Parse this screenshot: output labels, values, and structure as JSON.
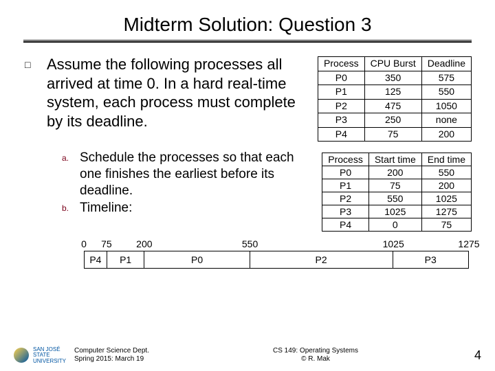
{
  "title": "Midterm Solution: Question 3",
  "main_bullet_symbol": "□",
  "main_text_part1": "Assume the following processes all arrived at time 0. In a hard real-time system, each",
  "main_text_full": "Assume the following processes all arrived at time 0. In a hard real-time system, each process must complete by its deadline.",
  "table1": {
    "headers": [
      "Process",
      "CPU Burst",
      "Deadline"
    ],
    "rows": [
      [
        "P0",
        "350",
        "575"
      ],
      [
        "P1",
        "125",
        "550"
      ],
      [
        "P2",
        "475",
        "1050"
      ],
      [
        "P3",
        "250",
        "none"
      ],
      [
        "P4",
        "75",
        "200"
      ]
    ],
    "border_color": "#000000",
    "font_size": 14
  },
  "sub_a": {
    "letter": "a.",
    "text": "Schedule the processes so that each one finishes the earliest before its deadline."
  },
  "sub_b": {
    "letter": "b.",
    "text": "Timeline:"
  },
  "letter_color": "#7a0019",
  "table2": {
    "headers": [
      "Process",
      "Start time",
      "End time"
    ],
    "rows": [
      [
        "P0",
        "200",
        "550"
      ],
      [
        "P1",
        "75",
        "200"
      ],
      [
        "P2",
        "550",
        "1025"
      ],
      [
        "P3",
        "1025",
        "1275"
      ],
      [
        "P4",
        "0",
        "75"
      ]
    ],
    "border_color": "#000000",
    "font_size": 14
  },
  "timeline": {
    "ticks": [
      {
        "label": "0",
        "pos": 0.0
      },
      {
        "label": "75",
        "pos": 0.0588
      },
      {
        "label": "200",
        "pos": 0.1569
      },
      {
        "label": "550",
        "pos": 0.4314
      },
      {
        "label": "1025",
        "pos": 0.8039
      },
      {
        "label": "1275",
        "pos": 1.0
      }
    ],
    "segments": [
      {
        "label": "P4",
        "width_pct": 5.88
      },
      {
        "label": "P1",
        "width_pct": 9.8
      },
      {
        "label": "P0",
        "width_pct": 27.45
      },
      {
        "label": "P2",
        "width_pct": 37.26
      },
      {
        "label": "P3",
        "width_pct": 19.61
      }
    ],
    "bar_border": "#000000",
    "font_size": 14
  },
  "footer": {
    "uni": "SAN JOSÉ STATE UNIVERSITY",
    "left1": "Computer Science Dept.",
    "left2": "Spring 2015: March 19",
    "center1": "CS 149: Operating Systems",
    "center2": "© R. Mak",
    "page": "4"
  }
}
